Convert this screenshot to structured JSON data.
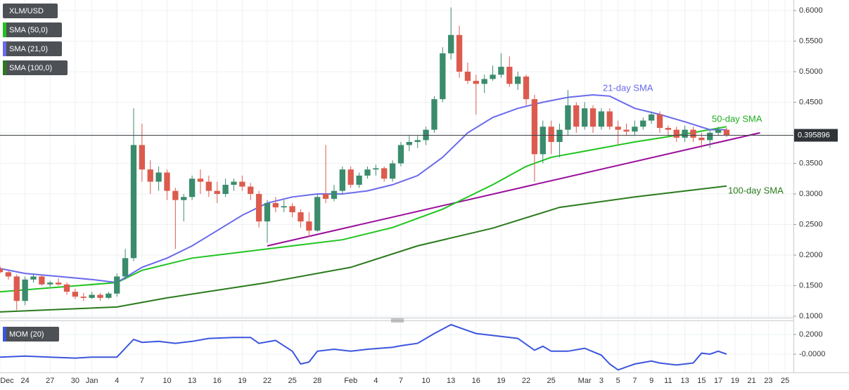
{
  "chart_data": [
    {
      "type": "candlestick",
      "name": "XLM/USD",
      "x": [
        "Dec 21",
        "Dec 22",
        "Dec 23",
        "Dec 24",
        "Dec 25",
        "Dec 26",
        "Dec 27",
        "Dec 28",
        "Dec 29",
        "Dec 30",
        "Dec 31",
        "Jan 1",
        "Jan 2",
        "Jan 3",
        "Jan 4",
        "Jan 5",
        "Jan 6",
        "Jan 7",
        "Jan 8",
        "Jan 9",
        "Jan 10",
        "Jan 11",
        "Jan 12",
        "Jan 13",
        "Jan 14",
        "Jan 15",
        "Jan 16",
        "Jan 17",
        "Jan 18",
        "Jan 19",
        "Jan 20",
        "Jan 21",
        "Jan 22",
        "Jan 23",
        "Jan 24",
        "Jan 25",
        "Jan 26",
        "Jan 27",
        "Jan 28",
        "Jan 29",
        "Jan 30",
        "Jan 31",
        "Feb 1",
        "Feb 2",
        "Feb 3",
        "Feb 4",
        "Feb 5",
        "Feb 6",
        "Feb 7",
        "Feb 8",
        "Feb 9",
        "Feb 10",
        "Feb 11",
        "Feb 12",
        "Feb 13",
        "Feb 14",
        "Feb 15",
        "Feb 16",
        "Feb 17",
        "Feb 18",
        "Feb 19",
        "Feb 20",
        "Feb 21",
        "Feb 22",
        "Feb 23",
        "Feb 24",
        "Feb 25",
        "Feb 26",
        "Feb 27",
        "Feb 28",
        "Mar 1",
        "Mar 2",
        "Mar 3",
        "Mar 4",
        "Mar 5",
        "Mar 6",
        "Mar 7",
        "Mar 8",
        "Mar 9",
        "Mar 10",
        "Mar 11",
        "Mar 12",
        "Mar 13",
        "Mar 14",
        "Mar 15",
        "Mar 16",
        "Mar 17",
        "Mar 18"
      ],
      "open": [
        0.178,
        0.172,
        0.165,
        0.125,
        0.16,
        0.165,
        0.152,
        0.155,
        0.152,
        0.14,
        0.132,
        0.13,
        0.135,
        0.13,
        0.137,
        0.165,
        0.195,
        0.38,
        0.34,
        0.32,
        0.335,
        0.305,
        0.29,
        0.295,
        0.325,
        0.32,
        0.305,
        0.3,
        0.315,
        0.32,
        0.312,
        0.3,
        0.255,
        0.285,
        0.278,
        0.28,
        0.27,
        0.255,
        0.24,
        0.3,
        0.292,
        0.305,
        0.34,
        0.315,
        0.33,
        0.34,
        0.342,
        0.325,
        0.35,
        0.38,
        0.385,
        0.388,
        0.405,
        0.455,
        0.53,
        0.56,
        0.5,
        0.485,
        0.48,
        0.488,
        0.495,
        0.508,
        0.48,
        0.492,
        0.455,
        0.365,
        0.41,
        0.385,
        0.405,
        0.445,
        0.41,
        0.44,
        0.41,
        0.435,
        0.41,
        0.405,
        0.402,
        0.41,
        0.42,
        0.43,
        0.408,
        0.405,
        0.392,
        0.405,
        0.392,
        0.388,
        0.4,
        0.405
      ],
      "high": [
        0.182,
        0.175,
        0.168,
        0.165,
        0.17,
        0.168,
        0.158,
        0.162,
        0.155,
        0.145,
        0.138,
        0.14,
        0.138,
        0.14,
        0.17,
        0.21,
        0.44,
        0.415,
        0.355,
        0.345,
        0.34,
        0.31,
        0.3,
        0.33,
        0.34,
        0.33,
        0.32,
        0.325,
        0.325,
        0.33,
        0.318,
        0.305,
        0.29,
        0.295,
        0.29,
        0.285,
        0.275,
        0.27,
        0.3,
        0.38,
        0.315,
        0.345,
        0.345,
        0.335,
        0.345,
        0.348,
        0.345,
        0.355,
        0.385,
        0.395,
        0.395,
        0.41,
        0.46,
        0.54,
        0.605,
        0.575,
        0.515,
        0.495,
        0.495,
        0.51,
        0.53,
        0.525,
        0.5,
        0.495,
        0.462,
        0.42,
        0.42,
        0.415,
        0.47,
        0.45,
        0.45,
        0.445,
        0.44,
        0.44,
        0.42,
        0.415,
        0.42,
        0.425,
        0.435,
        0.435,
        0.412,
        0.41,
        0.412,
        0.41,
        0.4,
        0.405,
        0.41,
        0.408
      ],
      "low": [
        0.17,
        0.16,
        0.11,
        0.118,
        0.155,
        0.15,
        0.148,
        0.15,
        0.135,
        0.128,
        0.125,
        0.128,
        0.125,
        0.128,
        0.132,
        0.16,
        0.19,
        0.32,
        0.3,
        0.305,
        0.29,
        0.21,
        0.255,
        0.29,
        0.3,
        0.295,
        0.285,
        0.295,
        0.305,
        0.305,
        0.29,
        0.245,
        0.22,
        0.27,
        0.27,
        0.262,
        0.245,
        0.23,
        0.238,
        0.285,
        0.288,
        0.3,
        0.31,
        0.31,
        0.325,
        0.33,
        0.32,
        0.32,
        0.345,
        0.37,
        0.375,
        0.38,
        0.4,
        0.45,
        0.52,
        0.49,
        0.48,
        0.43,
        0.465,
        0.485,
        0.49,
        0.475,
        0.47,
        0.445,
        0.32,
        0.35,
        0.365,
        0.36,
        0.395,
        0.4,
        0.405,
        0.4,
        0.405,
        0.405,
        0.38,
        0.395,
        0.395,
        0.405,
        0.415,
        0.4,
        0.395,
        0.385,
        0.385,
        0.385,
        0.375,
        0.375,
        0.395,
        0.393
      ],
      "close": [
        0.172,
        0.165,
        0.125,
        0.16,
        0.165,
        0.152,
        0.155,
        0.152,
        0.14,
        0.132,
        0.13,
        0.135,
        0.13,
        0.137,
        0.165,
        0.195,
        0.38,
        0.34,
        0.32,
        0.335,
        0.305,
        0.29,
        0.295,
        0.325,
        0.32,
        0.305,
        0.3,
        0.315,
        0.32,
        0.312,
        0.3,
        0.255,
        0.285,
        0.278,
        0.28,
        0.27,
        0.255,
        0.24,
        0.295,
        0.292,
        0.305,
        0.34,
        0.315,
        0.33,
        0.34,
        0.342,
        0.325,
        0.35,
        0.38,
        0.385,
        0.388,
        0.405,
        0.455,
        0.53,
        0.56,
        0.5,
        0.485,
        0.48,
        0.488,
        0.495,
        0.508,
        0.48,
        0.492,
        0.455,
        0.365,
        0.41,
        0.385,
        0.405,
        0.445,
        0.41,
        0.44,
        0.41,
        0.435,
        0.41,
        0.405,
        0.402,
        0.41,
        0.42,
        0.43,
        0.408,
        0.405,
        0.392,
        0.405,
        0.392,
        0.388,
        0.4,
        0.405,
        0.396
      ],
      "up_color": "#3a8c6c",
      "down_color": "#dc5b4e",
      "xlim": [
        "Dec 21",
        "Mar 26"
      ],
      "ylim": [
        0.0977,
        0.6172
      ],
      "yticks": [
        {
          "value": 0.1,
          "label": "0.1000"
        },
        {
          "value": 0.15,
          "label": "0.1500"
        },
        {
          "value": 0.2,
          "label": "0.2000"
        },
        {
          "value": 0.25,
          "label": "0.2500"
        },
        {
          "value": 0.3,
          "label": "0.3000"
        },
        {
          "value": 0.35,
          "label": "0.3500"
        },
        {
          "value": 0.4,
          "label": "0.4000"
        },
        {
          "value": 0.45,
          "label": "0.4500"
        },
        {
          "value": 0.5,
          "label": "0.5000"
        },
        {
          "value": 0.55,
          "label": "0.5500"
        },
        {
          "value": 0.6,
          "label": "0.6000"
        }
      ],
      "grid": true,
      "series": [
        {
          "name": "SMA (50,0)",
          "color": "#1fc41f",
          "x": [
            "Dec 21",
            "Jan 4",
            "Jan 7",
            "Jan 13",
            "Jan 19",
            "Jan 25",
            "Jan 31",
            "Feb 6",
            "Feb 12",
            "Feb 18",
            "Feb 22",
            "Feb 25",
            "Mar 1",
            "Mar 7",
            "Mar 13",
            "Mar 18"
          ],
          "values": [
            0.14,
            0.155,
            0.175,
            0.195,
            0.205,
            0.215,
            0.225,
            0.245,
            0.275,
            0.315,
            0.345,
            0.36,
            0.37,
            0.385,
            0.398,
            0.41
          ]
        },
        {
          "name": "SMA (21,0)",
          "color": "#6a6aee",
          "x": [
            "Dec 21",
            "Dec 24",
            "Dec 28",
            "Jan 1",
            "Jan 4",
            "Jan 7",
            "Jan 10",
            "Jan 13",
            "Jan 16",
            "Jan 19",
            "Jan 22",
            "Jan 25",
            "Jan 28",
            "Jan 31",
            "Feb 3",
            "Feb 6",
            "Feb 9",
            "Feb 12",
            "Feb 15",
            "Feb 18",
            "Feb 21",
            "Feb 24",
            "Feb 27",
            "Mar 2",
            "Mar 4",
            "Mar 7",
            "Mar 10",
            "Mar 13",
            "Mar 16",
            "Mar 18"
          ],
          "values": [
            0.178,
            0.17,
            0.165,
            0.16,
            0.155,
            0.18,
            0.195,
            0.215,
            0.24,
            0.265,
            0.285,
            0.295,
            0.3,
            0.3,
            0.305,
            0.315,
            0.33,
            0.36,
            0.4,
            0.425,
            0.44,
            0.45,
            0.458,
            0.462,
            0.46,
            0.44,
            0.43,
            0.418,
            0.405,
            0.405
          ]
        },
        {
          "name": "SMA (100,0)",
          "color": "#2a7a1c",
          "x": [
            "Dec 21",
            "Jan 4",
            "Jan 10",
            "Jan 22",
            "Feb 1",
            "Feb 9",
            "Feb 18",
            "Feb 26",
            "Mar 7",
            "Mar 18"
          ],
          "values": [
            0.107,
            0.115,
            0.13,
            0.155,
            0.18,
            0.215,
            0.244,
            0.278,
            0.295,
            0.313
          ]
        }
      ],
      "trendline": {
        "color": "#9a0f9a",
        "x": [
          "Jan 22",
          "Mar 22"
        ],
        "values": [
          0.215,
          0.4
        ]
      },
      "annotations": [
        "21-day SMA",
        "50-day SMA",
        "100-day SMA"
      ],
      "last_price": 0.395896
    },
    {
      "type": "line",
      "series": [
        {
          "name": "MOM (20)",
          "color": "#3b55dd",
          "x": [
            "Dec 21",
            "Dec 24",
            "Dec 27",
            "Dec 30",
            "Jan 1",
            "Jan 4",
            "Jan 6",
            "Jan 7",
            "Jan 9",
            "Jan 11",
            "Jan 13",
            "Jan 15",
            "Jan 18",
            "Jan 20",
            "Jan 21",
            "Jan 23",
            "Jan 25",
            "Jan 26",
            "Jan 27",
            "Jan 28",
            "Jan 30",
            "Feb 1",
            "Feb 3",
            "Feb 6",
            "Feb 7",
            "Feb 9",
            "Feb 11",
            "Feb 13",
            "Feb 15",
            "Feb 16",
            "Feb 18",
            "Feb 21",
            "Feb 23",
            "Feb 24",
            "Feb 25",
            "Feb 27",
            "Mar 1",
            "Mar 3",
            "Mar 4",
            "Mar 5",
            "Mar 7",
            "Mar 9",
            "Mar 10",
            "Mar 12",
            "Mar 14",
            "Mar 15",
            "Mar 16",
            "Mar 17",
            "Mar 18"
          ],
          "values": [
            -0.03,
            -0.02,
            -0.03,
            -0.04,
            -0.03,
            -0.03,
            0.15,
            0.12,
            0.13,
            0.11,
            0.13,
            0.16,
            0.17,
            0.17,
            0.11,
            0.14,
            0.03,
            -0.1,
            -0.08,
            0.03,
            0.05,
            0.03,
            0.05,
            0.07,
            0.086,
            0.11,
            0.21,
            0.3,
            0.24,
            0.21,
            0.19,
            0.16,
            0.04,
            0.08,
            0.03,
            0.03,
            0.06,
            -0.01,
            -0.1,
            -0.16,
            -0.1,
            -0.07,
            -0.09,
            -0.11,
            -0.09,
            0.01,
            0.0,
            0.03,
            0.0
          ]
        }
      ],
      "ylim": [
        -0.1857,
        0.3286
      ],
      "yticks": [
        {
          "value": 0.2,
          "label": "0.2000"
        },
        {
          "value": 0,
          "label": "-0.0000"
        }
      ],
      "xticks": [
        {
          "value": "Dec 21",
          "label": "Dec"
        },
        {
          "value": "Dec 24",
          "label": "24"
        },
        {
          "value": "Dec 27",
          "label": "27"
        },
        {
          "value": "Dec 30",
          "label": "30"
        },
        {
          "value": "Jan 1",
          "label": "Jan"
        },
        {
          "value": "Jan 4",
          "label": "4"
        },
        {
          "value": "Jan 7",
          "label": "7"
        },
        {
          "value": "Jan 10",
          "label": "10"
        },
        {
          "value": "Jan 13",
          "label": "13"
        },
        {
          "value": "Jan 16",
          "label": "16"
        },
        {
          "value": "Jan 19",
          "label": "19"
        },
        {
          "value": "Jan 22",
          "label": "22"
        },
        {
          "value": "Jan 25",
          "label": "25"
        },
        {
          "value": "Jan 28",
          "label": "28"
        },
        {
          "value": "Feb 1",
          "label": "Feb"
        },
        {
          "value": "Feb 4",
          "label": "4"
        },
        {
          "value": "Feb 7",
          "label": "7"
        },
        {
          "value": "Feb 10",
          "label": "10"
        },
        {
          "value": "Feb 13",
          "label": "13"
        },
        {
          "value": "Feb 16",
          "label": "16"
        },
        {
          "value": "Feb 19",
          "label": "19"
        },
        {
          "value": "Feb 22",
          "label": "22"
        },
        {
          "value": "Feb 25",
          "label": "25"
        },
        {
          "value": "Mar 1",
          "label": "Mar"
        },
        {
          "value": "Mar 3",
          "label": "3"
        },
        {
          "value": "Mar 5",
          "label": "5"
        },
        {
          "value": "Mar 7",
          "label": "7"
        },
        {
          "value": "Mar 9",
          "label": "9"
        },
        {
          "value": "Mar 11",
          "label": "11"
        },
        {
          "value": "Mar 13",
          "label": "13"
        },
        {
          "value": "Mar 15",
          "label": "15"
        },
        {
          "value": "Mar 17",
          "label": "17"
        },
        {
          "value": "Mar 19",
          "label": "19"
        },
        {
          "value": "Mar 21",
          "label": "21"
        },
        {
          "value": "Mar 23",
          "label": "23"
        },
        {
          "value": "Mar 25",
          "label": "25"
        }
      ]
    }
  ]
}
